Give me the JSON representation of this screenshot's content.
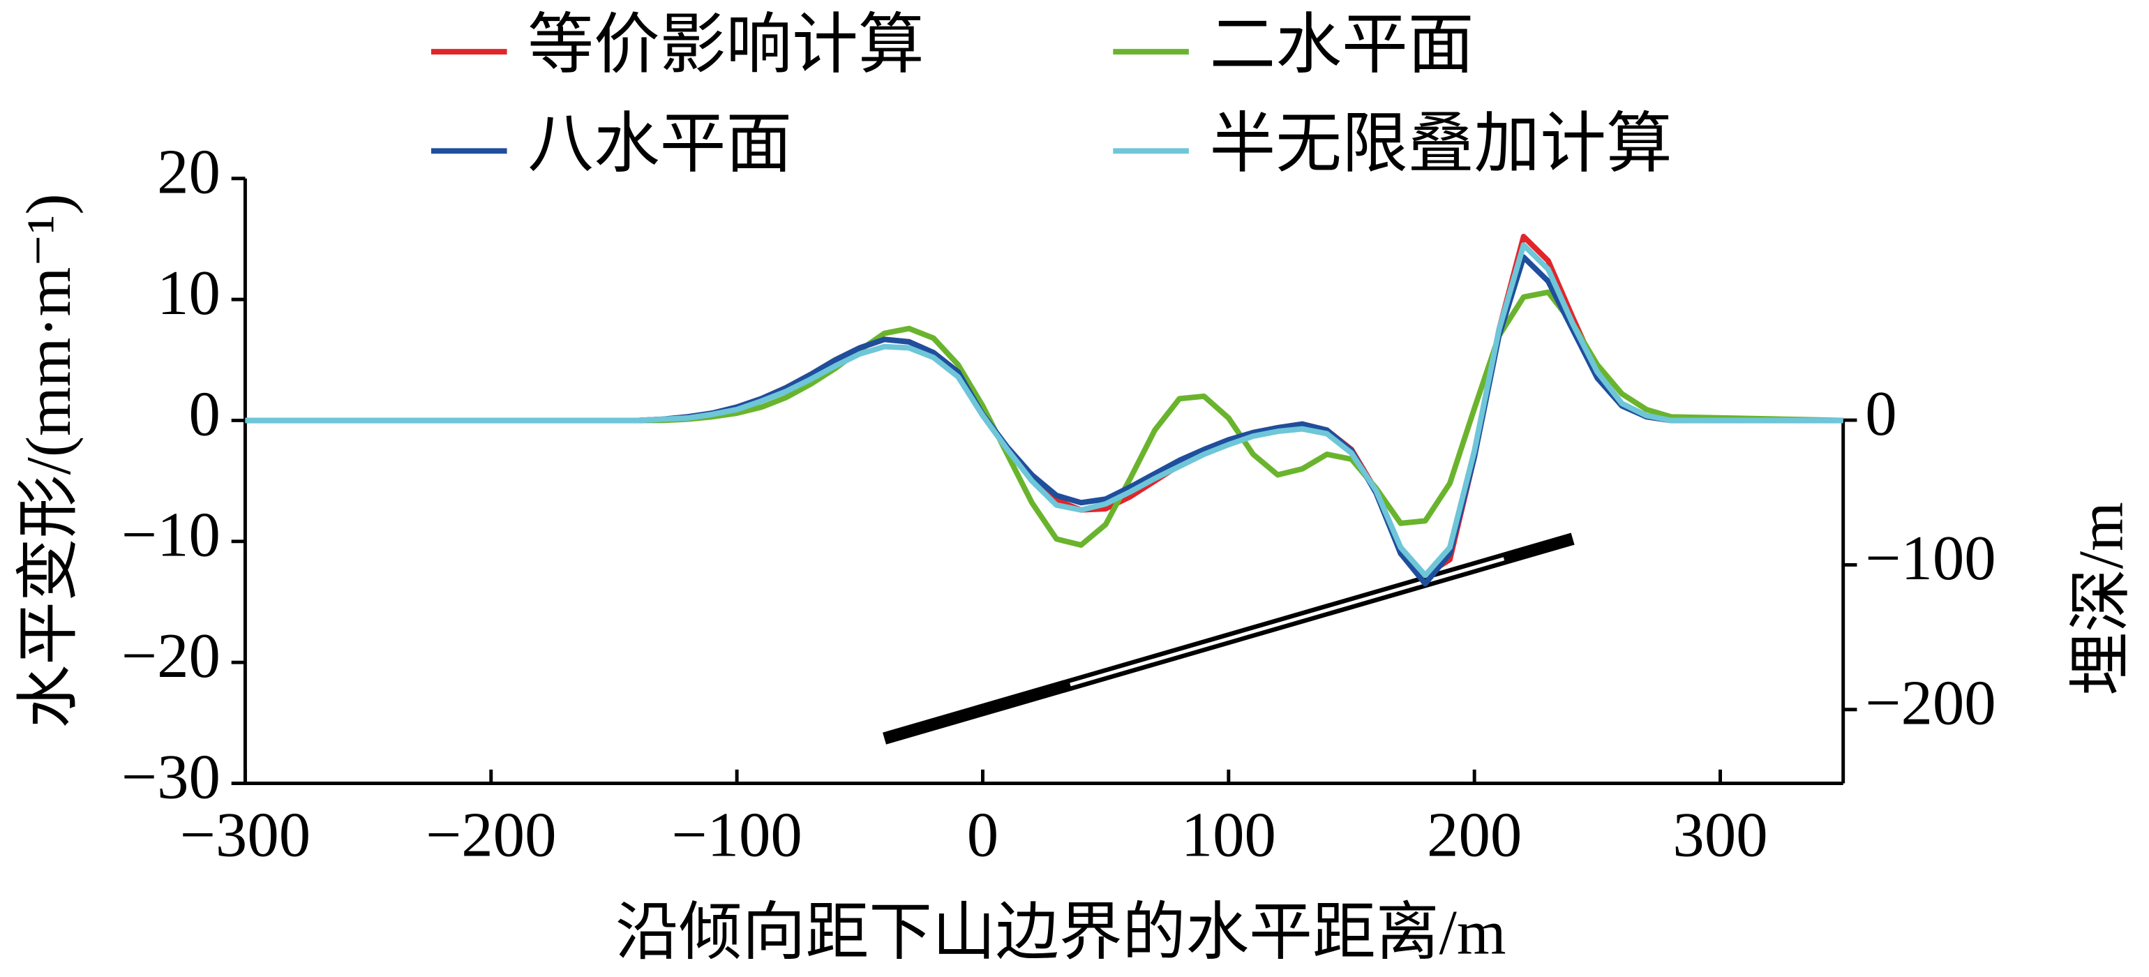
{
  "chart_data": {
    "type": "line",
    "x": [
      -300,
      -140,
      -130,
      -120,
      -110,
      -100,
      -90,
      -80,
      -70,
      -60,
      -50,
      -40,
      -30,
      -20,
      -10,
      0,
      10,
      20,
      30,
      40,
      50,
      60,
      70,
      80,
      90,
      100,
      110,
      120,
      130,
      140,
      150,
      160,
      170,
      180,
      190,
      200,
      210,
      220,
      230,
      240,
      250,
      260,
      270,
      280,
      350
    ],
    "series": [
      {
        "name": "等价影响计算",
        "color": "#e0262a",
        "values": [
          0,
          0,
          0.1,
          0.3,
          0.6,
          1.1,
          1.8,
          2.7,
          3.8,
          5.0,
          6.0,
          6.7,
          6.5,
          5.6,
          4.0,
          0.6,
          -2.3,
          -4.7,
          -6.6,
          -7.4,
          -7.3,
          -6.3,
          -5.0,
          -3.7,
          -2.6,
          -1.7,
          -1.1,
          -0.6,
          -0.3,
          -0.8,
          -2.4,
          -5.8,
          -11.0,
          -12.8,
          -11.5,
          -3.0,
          7.5,
          15.2,
          13.2,
          8.5,
          4.0,
          1.3,
          0.3,
          0,
          0
        ]
      },
      {
        "name": "二水平面",
        "color": "#6ab42d",
        "values": [
          0,
          0,
          0,
          0.1,
          0.3,
          0.6,
          1.1,
          1.9,
          3.0,
          4.3,
          5.8,
          7.2,
          7.6,
          6.8,
          4.6,
          1.2,
          -2.8,
          -6.8,
          -9.8,
          -10.3,
          -8.6,
          -4.8,
          -0.8,
          1.8,
          2.0,
          0.2,
          -2.8,
          -4.5,
          -4.0,
          -2.8,
          -3.2,
          -5.6,
          -8.5,
          -8.3,
          -5.2,
          1.0,
          7.0,
          10.2,
          10.6,
          8.0,
          4.6,
          2.2,
          0.9,
          0.3,
          0
        ]
      },
      {
        "name": "八水平面",
        "color": "#1f4e9c",
        "values": [
          0,
          0,
          0.1,
          0.3,
          0.6,
          1.1,
          1.8,
          2.7,
          3.8,
          5.0,
          6.0,
          6.7,
          6.5,
          5.6,
          4.0,
          0.5,
          -2.2,
          -4.5,
          -6.2,
          -6.8,
          -6.5,
          -5.5,
          -4.4,
          -3.3,
          -2.4,
          -1.6,
          -1.0,
          -0.6,
          -0.3,
          -0.8,
          -2.5,
          -6.0,
          -11.0,
          -13.5,
          -11.0,
          -3.0,
          7.0,
          13.5,
          11.5,
          7.5,
          3.5,
          1.2,
          0.3,
          0,
          0
        ]
      },
      {
        "name": "半无限叠加计算",
        "color": "#6ec6d8",
        "values": [
          0,
          0,
          0.1,
          0.2,
          0.5,
          0.9,
          1.6,
          2.4,
          3.4,
          4.5,
          5.5,
          6.1,
          6.0,
          5.2,
          3.6,
          0.4,
          -2.4,
          -5.0,
          -7.0,
          -7.4,
          -6.9,
          -5.9,
          -4.8,
          -3.8,
          -2.8,
          -2.0,
          -1.3,
          -0.9,
          -0.7,
          -1.1,
          -2.7,
          -5.8,
          -10.5,
          -12.8,
          -10.5,
          -2.5,
          7.5,
          14.5,
          12.5,
          8.0,
          4.0,
          1.4,
          0.4,
          0,
          0
        ]
      }
    ],
    "seam": {
      "x": [
        -40,
        240
      ],
      "values": [
        -220,
        -82
      ],
      "axis": "y2",
      "color": "#000000"
    },
    "xlim": [
      -300,
      350
    ],
    "xticks": [
      {
        "value": -300,
        "label": "−300"
      },
      {
        "value": -200,
        "label": "−200"
      },
      {
        "value": -100,
        "label": "−100"
      },
      0,
      100,
      200,
      300
    ],
    "ylim": [
      -30,
      20
    ],
    "yticks": [
      {
        "value": -30,
        "label": "−30"
      },
      {
        "value": -20,
        "label": "−20"
      },
      {
        "value": -10,
        "label": "−10"
      },
      0,
      10,
      20
    ],
    "y2lim": [
      -251,
      167
    ],
    "y2ticks": [
      {
        "value": -200,
        "label": "−200"
      },
      {
        "value": -100,
        "label": "−100"
      },
      0
    ],
    "xlabel": "沿倾向距下山边界的水平距离/m",
    "ylabel": "水平变形/(mm·m⁻¹)",
    "y2label": "埋深/m"
  }
}
